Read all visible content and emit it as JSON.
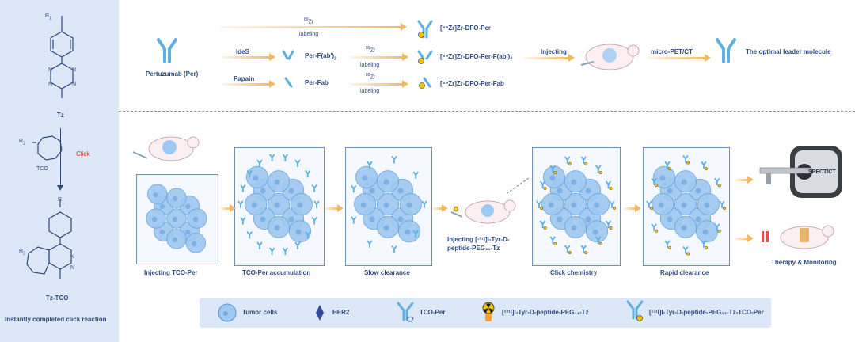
{
  "colors": {
    "panel_bg": "#dce8f7",
    "text": "#2e4a7a",
    "click_red": "#c0392b",
    "antibody": "#5fb0de",
    "arrow": "#f2b866",
    "cell": "#9ec9f0",
    "hazard": "#f5c400"
  },
  "left_panel": {
    "r1": "R",
    "r1_sub": "1",
    "tz_label": "Tz",
    "r2": "R",
    "r2_sub": "2",
    "tco_label": "TCO",
    "click_label": "Click",
    "tz_tco_label": "Tz-TCO",
    "caption": "Instantly completed click reaction"
  },
  "top_section": {
    "pertuzumab_label": "Pertuzumab (Per)",
    "ides_label": "IdeS",
    "papain_label": "Papain",
    "fab2_label": "Per-F(ab')",
    "fab2_sub": "2",
    "fab_label": "Per-Fab",
    "zr_label": "Zr",
    "zr_sup": "89",
    "labeling_label": "labeling",
    "product1": "[⁸⁹Zr]Zr-DFO-Per",
    "product2": "[⁸⁹Zr]Zr-DFO-Per-F(ab')₂",
    "product3": "[⁸⁹Zr]Zr-DFO-Per-Fab",
    "injecting_label": "Injecting",
    "micropet_label": "micro-PET/CT",
    "leader_label": "The optimal leader molecule"
  },
  "bottom_section": {
    "step1": "Injecting TCO-Per",
    "step2": "TCO-Per accumulation",
    "step3": "Slow clearance",
    "inject_line1": "Injecting [¹³¹I]I-Tyr-D-",
    "inject_line2": "peptide-PEG₁₁-Tz",
    "step4": "Click chemistry",
    "step5": "Rapid clearance",
    "scanner_label": "SPECT/CT",
    "therapy_label": "Therapy & Monitoring"
  },
  "legend": {
    "tumor_cells": "Tumor cells",
    "her2": "HER2",
    "tco_per": "TCO-Per",
    "tz_reagent": "[¹³¹I]I-Tyr-D-peptide-PEG₁₁-Tz",
    "conjugate": "[¹³¹I]I-Tyr-D-peptide-PEG₁₁-Tz-TCO-Per"
  }
}
